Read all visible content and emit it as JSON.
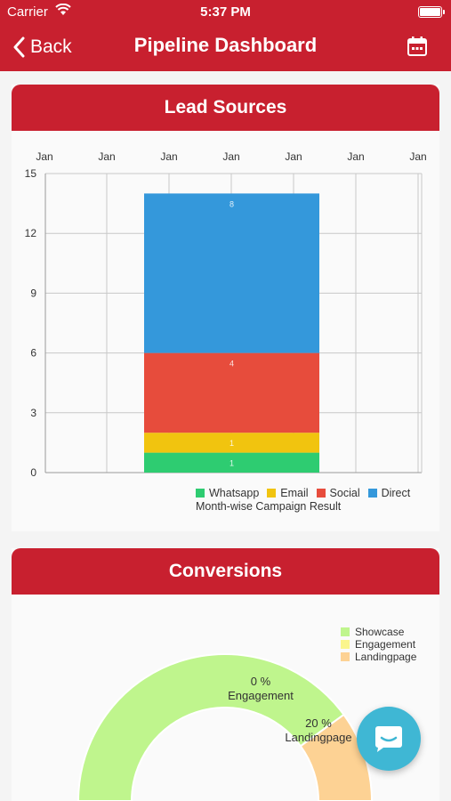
{
  "status_bar": {
    "carrier": "Carrier",
    "time": "5:37 PM"
  },
  "nav": {
    "back_label": "Back",
    "title": "Pipeline Dashboard"
  },
  "lead_sources": {
    "header": "Lead Sources"
  },
  "chart_data": [
    {
      "type": "bar",
      "stacked": true,
      "x_tick_labels": [
        "Jan",
        "Jan",
        "Jan",
        "Jan",
        "Jan",
        "Jan",
        "Jan"
      ],
      "categories": [
        "Jan"
      ],
      "series": [
        {
          "name": "Whatsapp",
          "values": [
            1
          ],
          "color": "#2ecc71"
        },
        {
          "name": "Email",
          "values": [
            1
          ],
          "color": "#f1c40f"
        },
        {
          "name": "Social",
          "values": [
            4
          ],
          "color": "#e74c3c"
        },
        {
          "name": "Direct",
          "values": [
            8
          ],
          "color": "#3498db"
        }
      ],
      "y_ticks": [
        0,
        3,
        6,
        9,
        12,
        15
      ],
      "ylim": [
        0,
        15
      ],
      "grid": true,
      "legend": "bottom",
      "description": "Month-wise Campaign Result"
    },
    {
      "type": "pie",
      "variant": "half-donut",
      "slices": [
        {
          "name": "Showcase",
          "value": 80,
          "color": "#bff58d"
        },
        {
          "name": "Engagement",
          "value": 0,
          "color": "#faf58c",
          "label": "0 %"
        },
        {
          "name": "Landingpage",
          "value": 20,
          "color": "#fdd294",
          "label": "20 %"
        }
      ],
      "legend": "top-right"
    }
  ],
  "conversions": {
    "header": "Conversions"
  },
  "icons": {
    "back": "chevron-left-icon",
    "calendar": "calendar-icon",
    "chat": "chat-icon",
    "wifi": "wifi-icon",
    "battery": "battery-icon"
  },
  "colors": {
    "brand": "#c8202f",
    "chat": "#3fb7d4"
  }
}
